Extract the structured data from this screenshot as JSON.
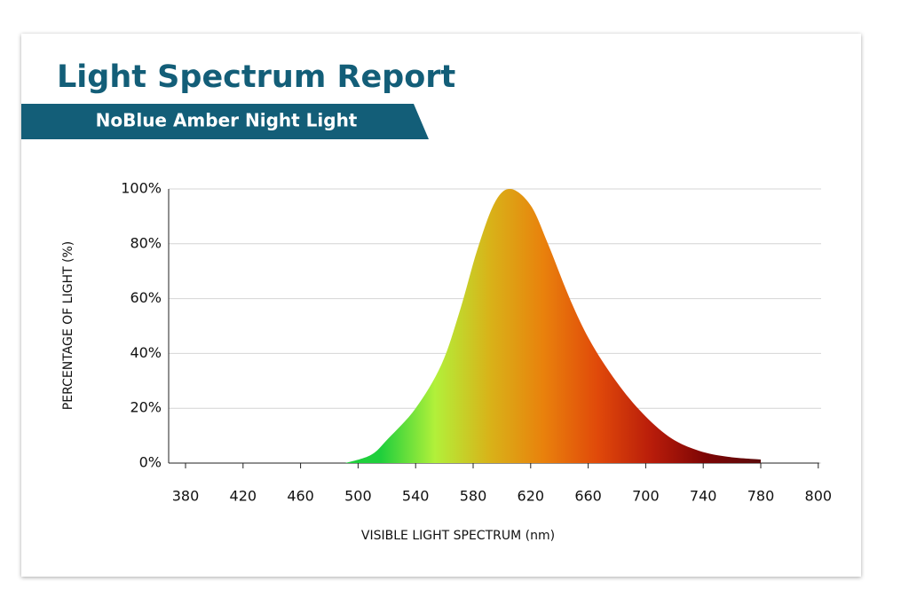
{
  "chart_data": {
    "type": "area",
    "title": "Light Spectrum Report",
    "subtitle": "NoBlue Amber Night Light",
    "x_label": "VISIBLE LIGHT SPECTRUM (nm)",
    "y_label": "PERCENTAGE OF LIGHT (%)",
    "x": [
      491,
      509,
      521,
      540,
      558,
      571,
      583,
      595,
      606,
      620,
      632,
      648,
      663,
      682,
      700,
      718,
      737,
      757,
      780
    ],
    "values": [
      0,
      3,
      9,
      20,
      36,
      56,
      78,
      95,
      100,
      94,
      80,
      59,
      43,
      28,
      17,
      9,
      4.5,
      2.3,
      1.3
    ],
    "gradient": [
      "#1fcf3c",
      "#b2f03a",
      "#d8b319",
      "#e9810c",
      "#e0490a",
      "#b81c0a",
      "#7c0505",
      "#5c0b0b"
    ],
    "xticks": [
      380,
      420,
      460,
      500,
      540,
      580,
      620,
      660,
      700,
      740,
      780,
      800
    ],
    "ylim": [
      0,
      100
    ],
    "yticks": [
      {
        "value": 0,
        "label": "0%"
      },
      {
        "value": 20,
        "label": "20%"
      },
      {
        "value": 40,
        "label": "40%"
      },
      {
        "value": 60,
        "label": "60%"
      },
      {
        "value": 80,
        "label": "80%"
      },
      {
        "value": 100,
        "label": "100%"
      }
    ],
    "grid": true,
    "accent_color": "#135e78"
  }
}
